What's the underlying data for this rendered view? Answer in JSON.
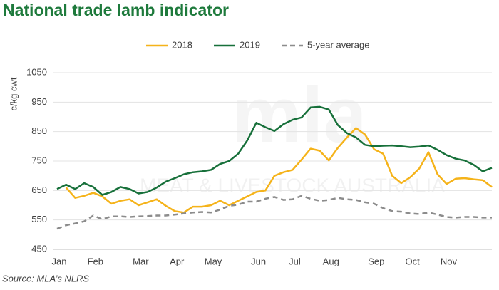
{
  "chart_data": {
    "type": "line",
    "title": "National trade lamb indicator",
    "y_label": "c/kg cwt",
    "source": "Source: MLA’s NLRS",
    "watermark": [
      "mla",
      "MEAT & LIVESTOCK AUSTRALIA"
    ],
    "categories": [
      "Jan",
      null,
      null,
      null,
      "Feb",
      null,
      null,
      null,
      null,
      "Mar",
      null,
      null,
      null,
      "Apr",
      null,
      null,
      null,
      "May",
      null,
      null,
      null,
      null,
      "Jun",
      null,
      null,
      null,
      "Jul",
      null,
      null,
      null,
      "Aug",
      null,
      null,
      null,
      null,
      "Sep",
      null,
      null,
      null,
      "Oct",
      null,
      null,
      null,
      "Nov",
      null,
      null,
      null,
      null,
      null
    ],
    "series": [
      {
        "name": "2018",
        "color": "#f5b31a",
        "dashed": false,
        "values": [
          null,
          660,
          625,
          632,
          642,
          630,
          605,
          615,
          620,
          600,
          610,
          620,
          598,
          580,
          575,
          595,
          595,
          600,
          615,
          600,
          615,
          630,
          645,
          650,
          700,
          712,
          720,
          755,
          792,
          785,
          752,
          795,
          830,
          862,
          840,
          790,
          775,
          700,
          675,
          695,
          725,
          780,
          705,
          672,
          690,
          692,
          688,
          685,
          662
        ]
      },
      {
        "name": "2019",
        "color": "#17703a",
        "dashed": false,
        "values": [
          655,
          670,
          655,
          675,
          662,
          635,
          645,
          662,
          655,
          640,
          645,
          660,
          680,
          692,
          705,
          712,
          715,
          720,
          740,
          750,
          775,
          820,
          880,
          865,
          852,
          875,
          890,
          898,
          932,
          934,
          925,
          872,
          845,
          830,
          805,
          800,
          802,
          803,
          800,
          797,
          799,
          803,
          788,
          770,
          758,
          752,
          737,
          715,
          727
        ]
      },
      {
        "name": "5-year average",
        "color": "#8c8c8c",
        "dashed": true,
        "values": [
          520,
          532,
          538,
          545,
          565,
          552,
          562,
          562,
          560,
          562,
          563,
          565,
          565,
          568,
          572,
          575,
          577,
          575,
          585,
          598,
          602,
          612,
          612,
          622,
          628,
          618,
          620,
          632,
          622,
          615,
          618,
          625,
          620,
          618,
          610,
          605,
          590,
          580,
          578,
          572,
          570,
          575,
          568,
          560,
          558,
          560,
          560,
          558,
          558
        ]
      }
    ],
    "ylim": [
      450,
      1050
    ],
    "yticks": [
      450,
      550,
      650,
      750,
      850,
      950,
      1050
    ],
    "grid": true,
    "legend": "top"
  }
}
